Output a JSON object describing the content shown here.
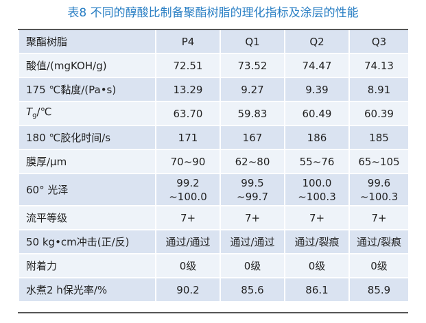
{
  "caption": "表8 不同的醇酸比制备聚酯树脂的理化指标及涂层的性能",
  "header": {
    "col0": "聚酯树脂",
    "cols": [
      "P4",
      "Q1",
      "Q2",
      "Q3"
    ]
  },
  "rows": [
    {
      "label": "酸值/(mgKOH/g)",
      "values": [
        "72.51",
        "73.52",
        "74.47",
        "74.13"
      ]
    },
    {
      "label": "175 ℃黏度/(Pa•s)",
      "values": [
        "13.29",
        "9.27",
        "9.39",
        "8.91"
      ]
    },
    {
      "label_main": "T",
      "label_sub": "g",
      "label_rest": "/℃",
      "values": [
        "63.70",
        "59.83",
        "60.49",
        "60.39"
      ]
    },
    {
      "label": "180 ℃胶化时间/s",
      "values": [
        "171",
        "167",
        "186",
        "185"
      ]
    },
    {
      "label": "膜厚/μm",
      "values": [
        "70~90",
        "62~80",
        "55~76",
        "65~105"
      ]
    },
    {
      "label": "60° 光泽",
      "values": [
        {
          "l1": "99.2",
          "l2": "~100.0"
        },
        {
          "l1": "99.5",
          "l2": "~99.7"
        },
        {
          "l1": "100.0",
          "l2": "~100.3"
        },
        {
          "l1": "99.6",
          "l2": "~100.3"
        }
      ]
    },
    {
      "label": "流平等级",
      "values": [
        "7+",
        "7+",
        "7+",
        "7+"
      ]
    },
    {
      "label": "50 kg•cm冲击(正/反)",
      "values": [
        "通过/通过",
        "通过/通过",
        "通过/裂痕",
        "通过/裂痕"
      ]
    },
    {
      "label": "附着力",
      "values": [
        "0级",
        "0级",
        "0级",
        "0级"
      ]
    },
    {
      "label": "水煮2 h保光率/%",
      "values": [
        "90.2",
        "85.6",
        "86.1",
        "85.9"
      ]
    }
  ]
}
